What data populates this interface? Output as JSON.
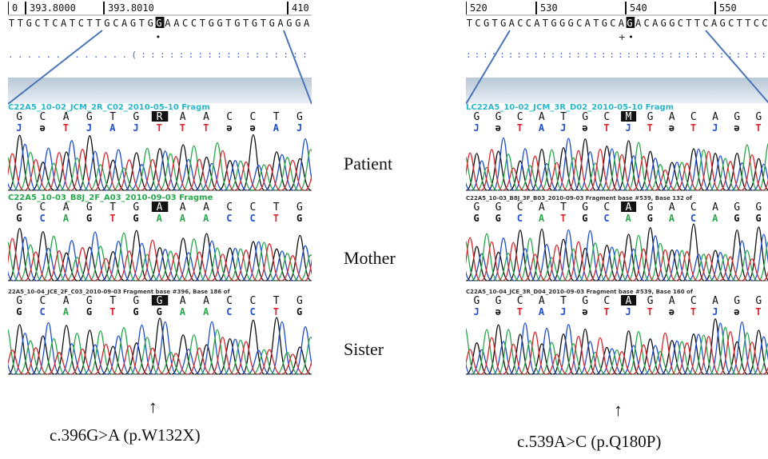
{
  "panels": [
    {
      "ruler": [
        "0",
        "393.8000",
        "393.8010",
        "410"
      ],
      "reference_seq": "TTGCTCATCTTGCAGTGGAACCTGGTGTGTGAGGA",
      "highlight_index": 17,
      "marker": "•",
      "alignment_dots": ".............(::::::::::::::::::",
      "tracks": [
        {
          "file": "C22A5_10-02_JCM_2R_C02_2010-05-10 Fragm",
          "file_color": "#29b6c9",
          "calls": [
            "G",
            "C",
            "A",
            "G",
            "T",
            "G",
            "R",
            "A",
            "A",
            "C",
            "C",
            "T",
            "G"
          ],
          "highlight": 6,
          "phred": [
            "J",
            "ə",
            "T",
            "J",
            "A",
            "J",
            "T",
            "T",
            "T",
            "ə",
            "ə",
            "A",
            "J"
          ],
          "phred_colors": [
            "#1f4fd1",
            "#111111",
            "#d8262d",
            "#1f4fd1",
            "#1f4fd1",
            "#1f4fd1",
            "#d8262d",
            "#d8262d",
            "#d8262d",
            "#111111",
            "#111111",
            "#1f4fd1",
            "#1f4fd1"
          ]
        },
        {
          "file": "C22A5_10-03_B8J_2F_A03_2010-09-03 Fragme",
          "file_color": "#27a84a",
          "calls": [
            "G",
            "C",
            "A",
            "G",
            "T",
            "G",
            "A",
            "A",
            "A",
            "C",
            "C",
            "T",
            "G"
          ],
          "highlight": 6,
          "phred": [
            "G",
            "C",
            "A",
            "G",
            "T",
            "G",
            "A",
            "A",
            "A",
            "C",
            "C",
            "T",
            "G"
          ],
          "phred_colors": [
            "#111111",
            "#1f4fd1",
            "#27a84a",
            "#111111",
            "#d8262d",
            "#111111",
            "#27a84a",
            "#27a84a",
            "#27a84a",
            "#1f4fd1",
            "#1f4fd1",
            "#d8262d",
            "#111111"
          ]
        },
        {
          "file": "22A5_10-04_JCE_2F_C03_2010-09-03 Fragment base #396, Base 186 of",
          "file_color": "#333333",
          "calls": [
            "G",
            "C",
            "A",
            "G",
            "T",
            "G",
            "G",
            "A",
            "A",
            "C",
            "C",
            "T",
            "G"
          ],
          "highlight": 6,
          "phred": [
            "G",
            "C",
            "A",
            "G",
            "T",
            "G",
            "G",
            "A",
            "A",
            "C",
            "C",
            "T",
            "G"
          ],
          "phred_colors": [
            "#111111",
            "#1f4fd1",
            "#27a84a",
            "#111111",
            "#d8262d",
            "#111111",
            "#111111",
            "#27a84a",
            "#27a84a",
            "#1f4fd1",
            "#1f4fd1",
            "#d8262d",
            "#111111"
          ]
        }
      ],
      "caption": "c.396G>A (p.W132X)"
    },
    {
      "ruler": [
        "520",
        "530",
        "540",
        "550"
      ],
      "reference_seq": "TCGTGACCATGGGCATGCAGACAGGCTTCAGCTTCC",
      "highlight_index": 19,
      "marker": "+ •",
      "alignment_dots": "::::::::::::::::::::::::::::::::::::",
      "tracks": [
        {
          "file": "LC22A5_10-02_JCM_3R_D02_2010-05-10 Fragm",
          "file_color": "#29b6c9",
          "calls": [
            "G",
            "G",
            "C",
            "A",
            "T",
            "G",
            "C",
            "M",
            "G",
            "A",
            "C",
            "A",
            "G",
            "G"
          ],
          "highlight": 7,
          "phred": [
            "J",
            "ə",
            "T",
            "A",
            "J",
            "ə",
            "T",
            "J",
            "T",
            "ə",
            "T",
            "J",
            "ə",
            "T"
          ],
          "phred_colors": [
            "#1f4fd1",
            "#111111",
            "#d8262d",
            "#1f4fd1",
            "#1f4fd1",
            "#111111",
            "#d8262d",
            "#1f4fd1",
            "#d8262d",
            "#111111",
            "#d8262d",
            "#1f4fd1",
            "#111111",
            "#d8262d"
          ]
        },
        {
          "file": "C22A5_10-03_B8J_3F_B03_2010-09-03 Fragment base #539, Base 132 of",
          "file_color": "#333333",
          "calls": [
            "G",
            "G",
            "C",
            "A",
            "T",
            "G",
            "C",
            "A",
            "G",
            "A",
            "C",
            "A",
            "G",
            "G"
          ],
          "highlight": 7,
          "phred": [
            "G",
            "G",
            "C",
            "A",
            "T",
            "G",
            "C",
            "A",
            "G",
            "A",
            "C",
            "A",
            "G",
            "G"
          ],
          "phred_colors": [
            "#111111",
            "#111111",
            "#1f4fd1",
            "#27a84a",
            "#d8262d",
            "#111111",
            "#1f4fd1",
            "#27a84a",
            "#111111",
            "#27a84a",
            "#1f4fd1",
            "#27a84a",
            "#111111",
            "#111111"
          ]
        },
        {
          "file": "C22A5_10-04_JCE_3R_D04_2010-09-03 Fragment base #539, Base 160 of",
          "file_color": "#333333",
          "calls": [
            "G",
            "G",
            "C",
            "A",
            "T",
            "G",
            "C",
            "A",
            "G",
            "A",
            "C",
            "A",
            "G",
            "G"
          ],
          "highlight": 7,
          "phred": [
            "J",
            "ə",
            "T",
            "A",
            "J",
            "ə",
            "T",
            "J",
            "T",
            "ə",
            "T",
            "J",
            "ə",
            "T"
          ],
          "phred_colors": [
            "#1f4fd1",
            "#111111",
            "#d8262d",
            "#1f4fd1",
            "#1f4fd1",
            "#111111",
            "#d8262d",
            "#1f4fd1",
            "#d8262d",
            "#111111",
            "#d8262d",
            "#1f4fd1",
            "#111111",
            "#d8262d"
          ]
        }
      ],
      "caption": "c.539A>C (p.Q180P)"
    }
  ],
  "labels": [
    "Patient",
    "Mother",
    "Sister"
  ],
  "arrow": "↑",
  "colors": {
    "A": "#27a84a",
    "C": "#1f4fd1",
    "G": "#111111",
    "T": "#d8262d",
    "highlight_bg": "#111111",
    "gradient_top": "#b8c8d6",
    "gradient_bottom": "#e8eef4",
    "zoom_line": "#4a76b8"
  }
}
